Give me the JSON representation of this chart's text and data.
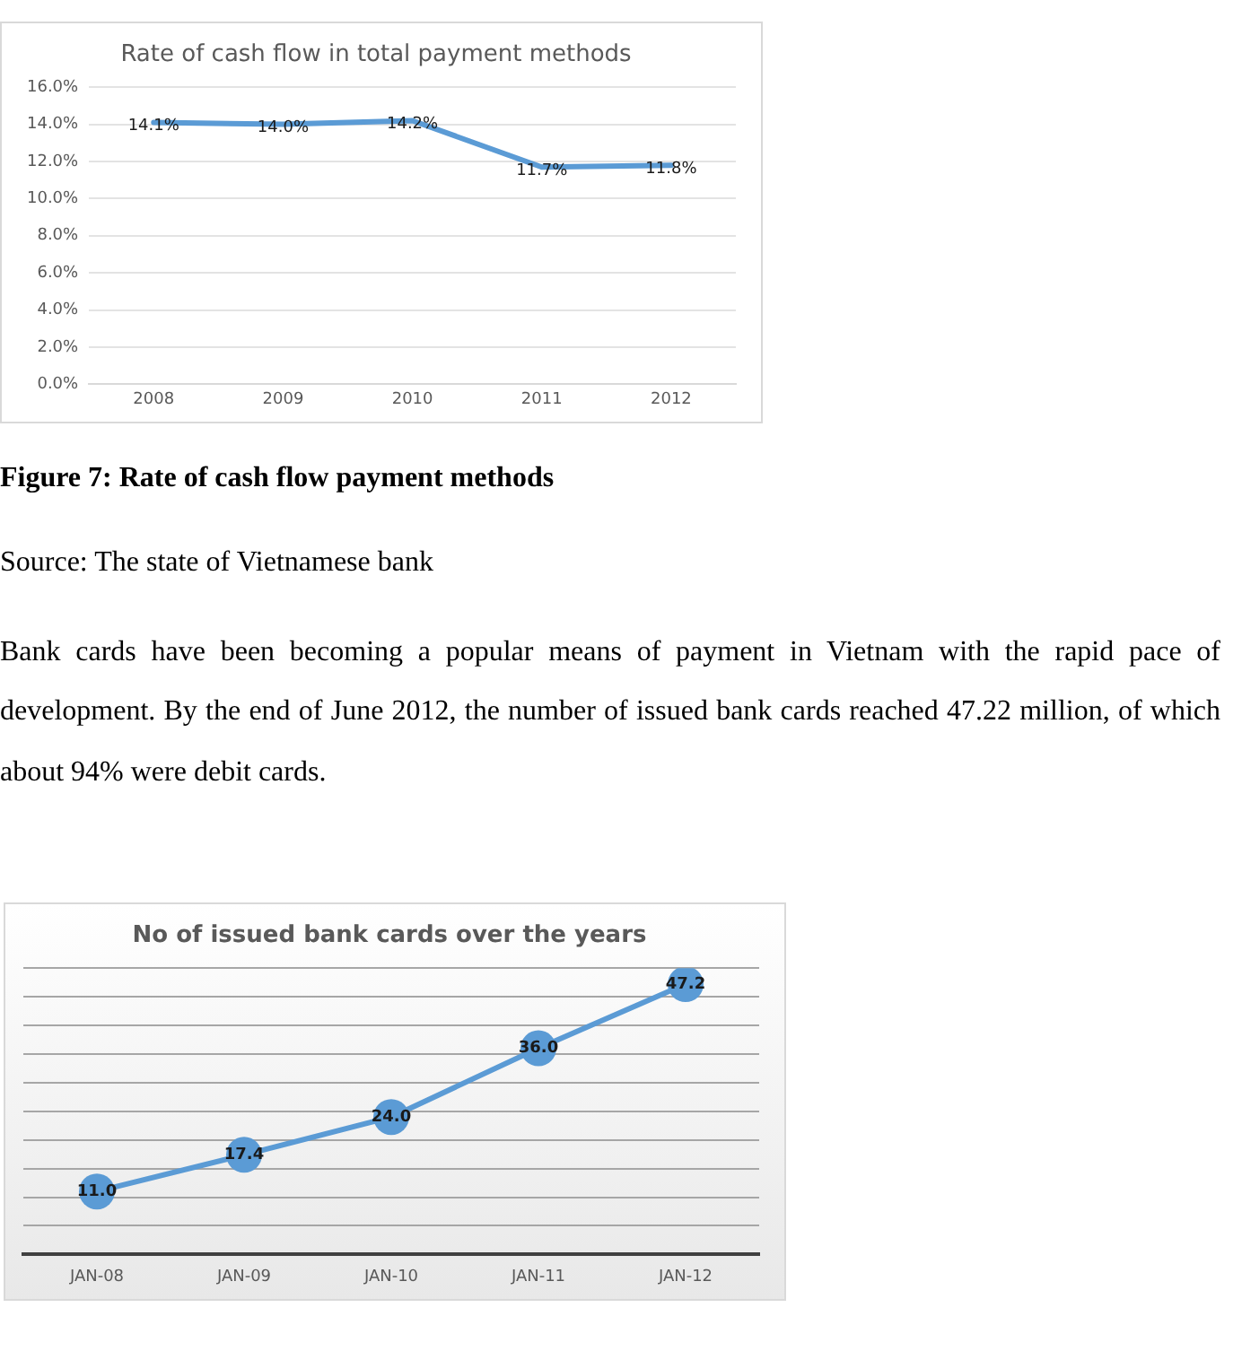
{
  "chart_data": [
    {
      "type": "line",
      "title": "Rate of cash flow in total payment methods",
      "categories": [
        "2008",
        "2009",
        "2010",
        "2011",
        "2012"
      ],
      "series": [
        {
          "color": "#5b9bd5",
          "values": [
            14.1,
            14.0,
            14.2,
            11.7,
            11.8
          ],
          "value_labels": [
            "14.1%",
            "14.0%",
            "14.2%",
            "11.7%",
            "11.8%"
          ]
        }
      ],
      "ylim": [
        0,
        16
      ],
      "yticks": [
        {
          "value": 0,
          "label": "0.0%"
        },
        {
          "value": 2,
          "label": "2.0%"
        },
        {
          "value": 4,
          "label": "4.0%"
        },
        {
          "value": 6,
          "label": "6.0%"
        },
        {
          "value": 8,
          "label": "8.0%"
        },
        {
          "value": 10,
          "label": "10.0%"
        },
        {
          "value": 12,
          "label": "12.0%"
        },
        {
          "value": 14,
          "label": "14.0%"
        },
        {
          "value": 16,
          "label": "16.0%"
        }
      ],
      "grid": "y",
      "legend": false,
      "marker": "none",
      "line_style": "solid",
      "annotations": [
        "Figure 7: Rate of cash flow payment methods",
        "Source: The state of Vietnamese bank",
        "Bank cards have been becoming a popular means of payment in Vietnam with the rapid pace of development. By the end of June 2012, the number of issued bank cards reached 47.22 million, of which about 94% were debit cards."
      ]
    },
    {
      "type": "line",
      "title": "No of issued bank cards over the years",
      "categories": [
        "JAN-08",
        "JAN-09",
        "JAN-10",
        "JAN-11",
        "JAN-12"
      ],
      "series": [
        {
          "color": "#5b9bd5",
          "values": [
            11.0,
            17.4,
            24.0,
            36.0,
            47.2
          ],
          "value_labels": [
            "11.0",
            "17.4",
            "24.0",
            "36.0",
            "47.2"
          ]
        }
      ],
      "ylim": [
        0,
        50
      ],
      "yticks": [
        {
          "value": 0,
          "label": null
        },
        {
          "value": 5,
          "label": null
        },
        {
          "value": 10,
          "label": null
        },
        {
          "value": 15,
          "label": null
        },
        {
          "value": 20,
          "label": null
        },
        {
          "value": 25,
          "label": null
        },
        {
          "value": 30,
          "label": null
        },
        {
          "value": 35,
          "label": null
        },
        {
          "value": 40,
          "label": null
        },
        {
          "value": 45,
          "label": null
        },
        {
          "value": 50,
          "label": null
        }
      ],
      "tick_labels": "x",
      "grid": "y",
      "legend": false,
      "marker": "circle",
      "line_style": "solid"
    }
  ]
}
